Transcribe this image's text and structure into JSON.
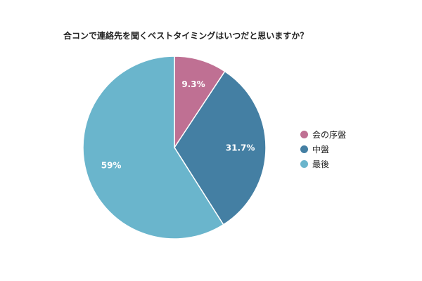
{
  "chart_data": {
    "type": "pie",
    "title": "合コンで連絡先を聞くベストタイミングはいつだと思いますか？",
    "categories": [
      "会の序盤",
      "中盤",
      "最後"
    ],
    "values": [
      9.3,
      31.7,
      59
    ],
    "value_labels": [
      "9.3%",
      "31.7%",
      "59%"
    ],
    "colors": [
      "#bf7093",
      "#447fa3",
      "#6ab5cc"
    ],
    "legend_position": "right",
    "start_angle": "12 o'clock, clockwise"
  }
}
